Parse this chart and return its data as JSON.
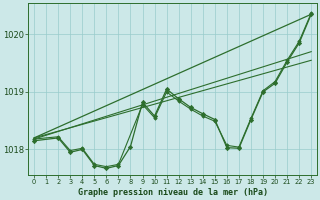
{
  "title": "Graphe pression niveau de la mer (hPa)",
  "background_color": "#cce8e8",
  "grid_color": "#99cccc",
  "line_color": "#2d6e2d",
  "xlim": [
    -0.5,
    23.5
  ],
  "ylim": [
    1017.55,
    1020.55
  ],
  "yticks": [
    1018,
    1019,
    1020
  ],
  "xticks": [
    0,
    1,
    2,
    3,
    4,
    5,
    6,
    7,
    8,
    9,
    10,
    11,
    12,
    13,
    14,
    15,
    16,
    17,
    18,
    19,
    20,
    21,
    22,
    23
  ],
  "line1_x": [
    0,
    23
  ],
  "line1_y": [
    1018.2,
    1020.35
  ],
  "line2_x": [
    0,
    23
  ],
  "line2_y": [
    1018.18,
    1019.7
  ],
  "line3_x": [
    0,
    23
  ],
  "line3_y": [
    1018.2,
    1019.55
  ],
  "wave1_x": [
    0,
    2,
    3,
    4,
    5,
    6,
    7,
    8,
    9,
    10,
    11,
    12,
    13,
    14,
    15,
    16,
    17,
    18,
    19,
    20,
    21,
    22,
    23
  ],
  "wave1_y": [
    1018.15,
    1018.2,
    1017.95,
    1018.0,
    1017.72,
    1017.67,
    1017.72,
    1018.05,
    1018.82,
    1018.58,
    1019.05,
    1018.88,
    1018.73,
    1018.62,
    1018.52,
    1018.03,
    1018.02,
    1018.52,
    1019.0,
    1019.15,
    1019.52,
    1019.85,
    1020.35
  ],
  "wave2_x": [
    0,
    2,
    3,
    4,
    5,
    6,
    7,
    9,
    10,
    11,
    12,
    13,
    14,
    15,
    16,
    17,
    18,
    19,
    20,
    21,
    22,
    23
  ],
  "wave2_y": [
    1018.18,
    1018.22,
    1017.98,
    1018.02,
    1017.74,
    1017.7,
    1017.74,
    1018.78,
    1018.55,
    1019.0,
    1018.84,
    1018.7,
    1018.58,
    1018.49,
    1018.07,
    1018.04,
    1018.54,
    1019.02,
    1019.18,
    1019.55,
    1019.88,
    1020.37
  ]
}
